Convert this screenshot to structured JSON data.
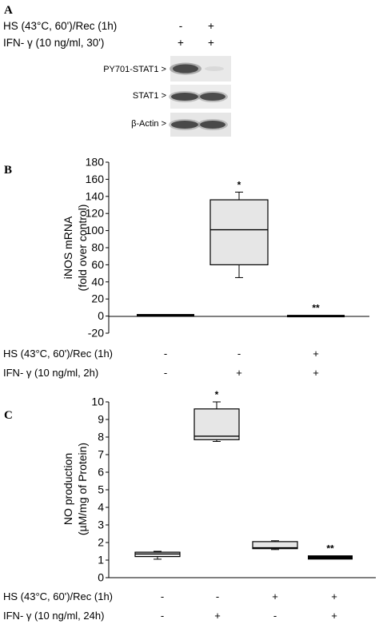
{
  "panel_a": {
    "letter": "A",
    "condition_rows": [
      {
        "label": "HS  (43°C, 60')/Rec (1h)",
        "signs": [
          "-",
          "+"
        ]
      },
      {
        "label": "IFN- γ  (10 ng/ml, 30')",
        "signs": [
          "+",
          "+"
        ]
      }
    ],
    "blot_labels": [
      "PY701-STAT1 >",
      "STAT1 >",
      "β-Actin >"
    ]
  },
  "panel_b": {
    "letter": "B",
    "condition_rows": [
      {
        "label": "HS (43°C, 60')/Rec (1h)",
        "signs": [
          "-",
          "-",
          "+"
        ]
      },
      {
        "label": "IFN- γ (10 ng/ml, 2h)",
        "signs": [
          "-",
          "+",
          "+"
        ]
      }
    ]
  },
  "panel_c": {
    "letter": "C",
    "condition_rows": [
      {
        "label": "HS (43°C, 60')/Rec (1h)",
        "signs": [
          "-",
          "-",
          "+",
          "+"
        ]
      },
      {
        "label": "IFN- γ (10 ng/ml, 24h)",
        "signs": [
          "-",
          "+",
          "-",
          "+"
        ]
      }
    ]
  },
  "chart_data": [
    {
      "type": "box",
      "panel": "B",
      "ylabel": "iNOS mRNA",
      "ylabel2": "(fold over control)",
      "ylim": [
        -20,
        180
      ],
      "yticks": [
        -20,
        0,
        20,
        40,
        60,
        80,
        100,
        120,
        140,
        160,
        180
      ],
      "groups": [
        {
          "min": 1,
          "q1": 1,
          "median": 1,
          "q3": 1,
          "max": 1,
          "annotation": ""
        },
        {
          "min": 45,
          "q1": 60,
          "median": 101,
          "q3": 136,
          "max": 145,
          "annotation": "*"
        },
        {
          "min": 0,
          "q1": 0,
          "median": 0,
          "q3": 0,
          "max": 0,
          "annotation": "**"
        }
      ],
      "box_fill": "#e6e6e6"
    },
    {
      "type": "box",
      "panel": "C",
      "ylabel": "NO production",
      "ylabel2": "(µM/mg of Protein)",
      "ylim": [
        0,
        10
      ],
      "yticks": [
        0,
        1,
        2,
        3,
        4,
        5,
        6,
        7,
        8,
        9,
        10
      ],
      "groups": [
        {
          "min": 1.05,
          "q1": 1.2,
          "median": 1.35,
          "q3": 1.45,
          "max": 1.5,
          "annotation": ""
        },
        {
          "min": 7.75,
          "q1": 7.85,
          "median": 8.05,
          "q3": 9.6,
          "max": 10.0,
          "annotation": "*"
        },
        {
          "min": 1.6,
          "q1": 1.65,
          "median": 1.7,
          "q3": 2.05,
          "max": 2.1,
          "annotation": ""
        },
        {
          "min": 1.05,
          "q1": 1.1,
          "median": 1.15,
          "q3": 1.2,
          "max": 1.2,
          "annotation": "**"
        }
      ],
      "box_fill": "#e6e6e6"
    }
  ]
}
